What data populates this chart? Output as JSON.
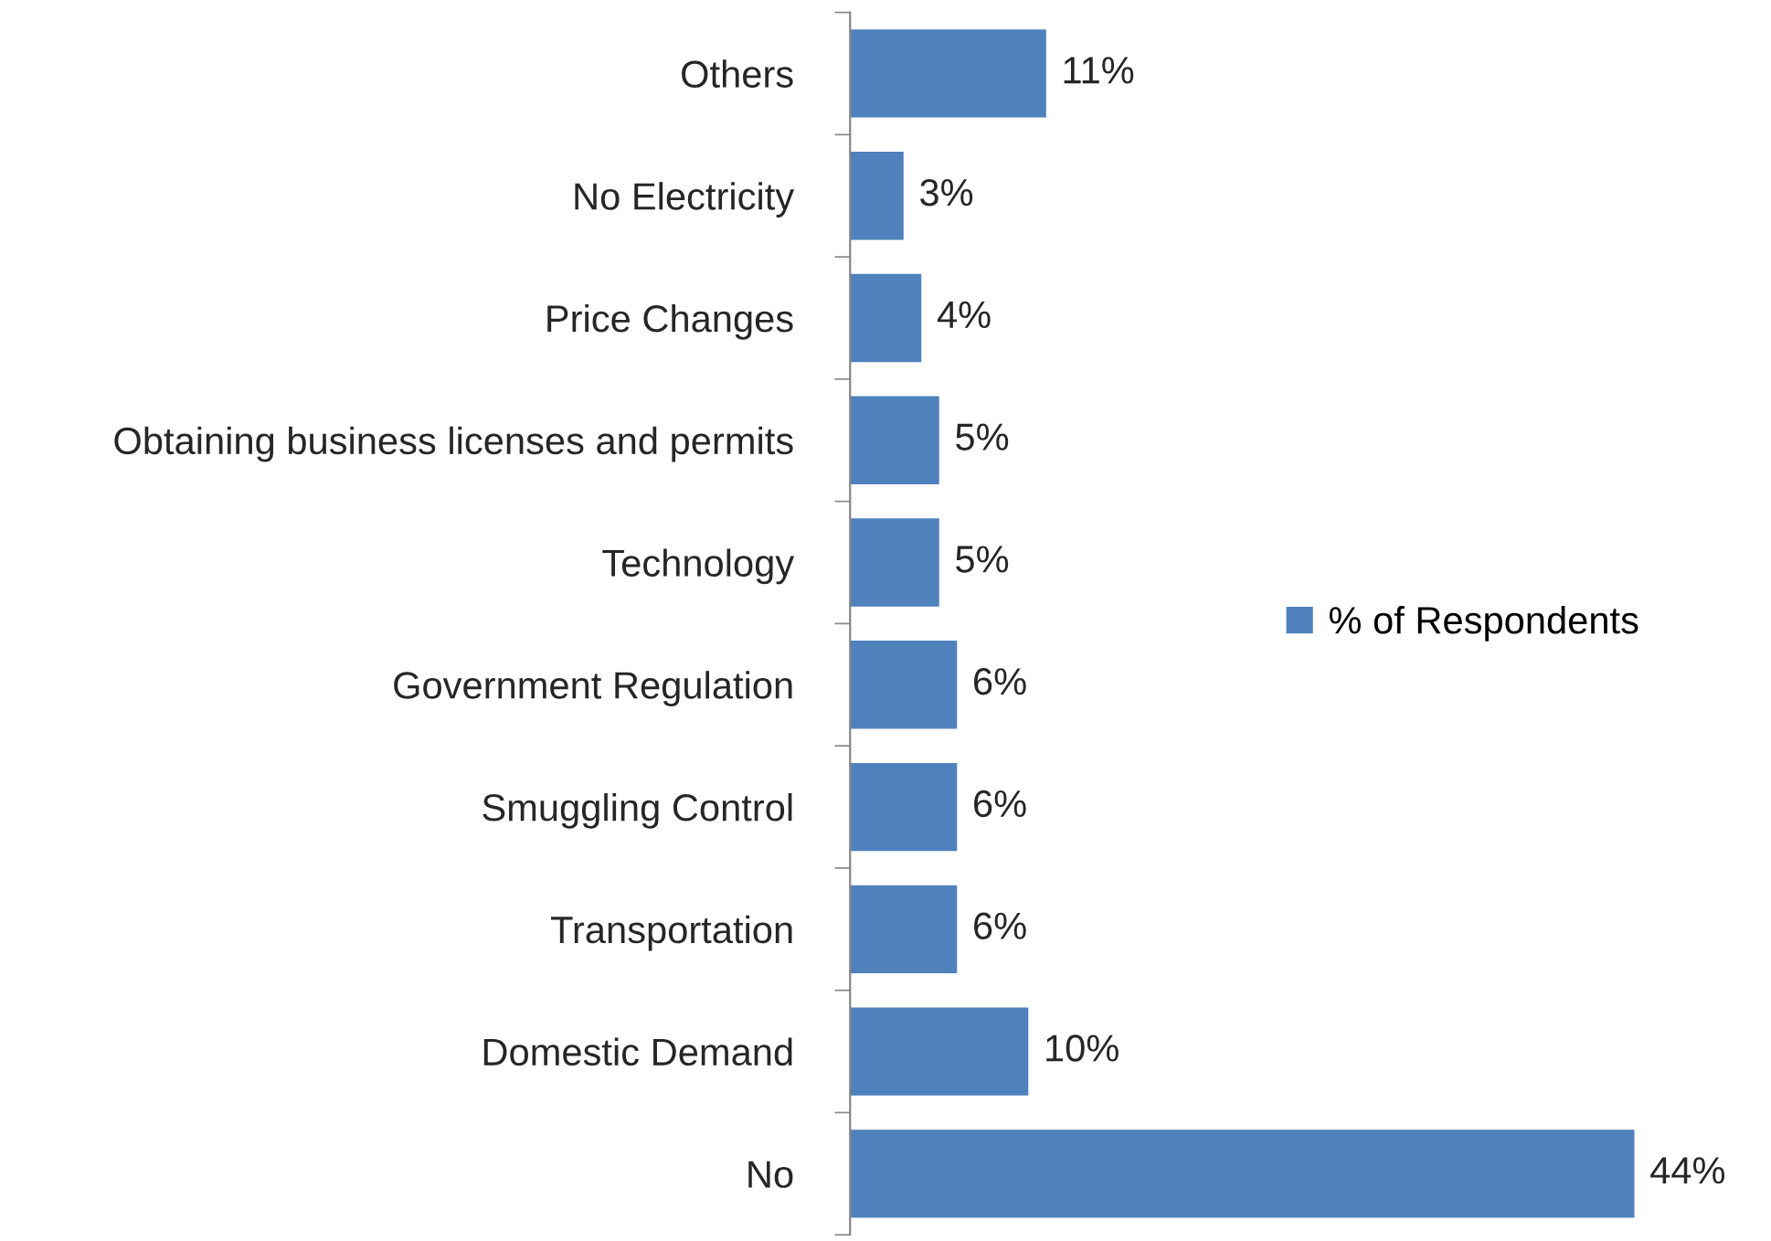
{
  "chart_data": {
    "type": "bar",
    "orientation": "horizontal",
    "categories": [
      "Others",
      "No Electricity",
      "Price Changes",
      "Obtaining business licenses and permits",
      "Technology",
      "Government Regulation",
      "Smuggling Control",
      "Transportation",
      "Domestic Demand",
      "No"
    ],
    "series": [
      {
        "name": "% of Respondents",
        "color": "#4f81bd",
        "values": [
          11,
          3,
          4,
          5,
          5,
          6,
          6,
          6,
          10,
          44
        ],
        "value_labels": [
          "11%",
          "3%",
          "4%",
          "5%",
          "5%",
          "6%",
          "6%",
          "6%",
          "10%",
          "44%"
        ]
      }
    ],
    "legend": "right",
    "grid": false,
    "tick_labels": "y"
  }
}
